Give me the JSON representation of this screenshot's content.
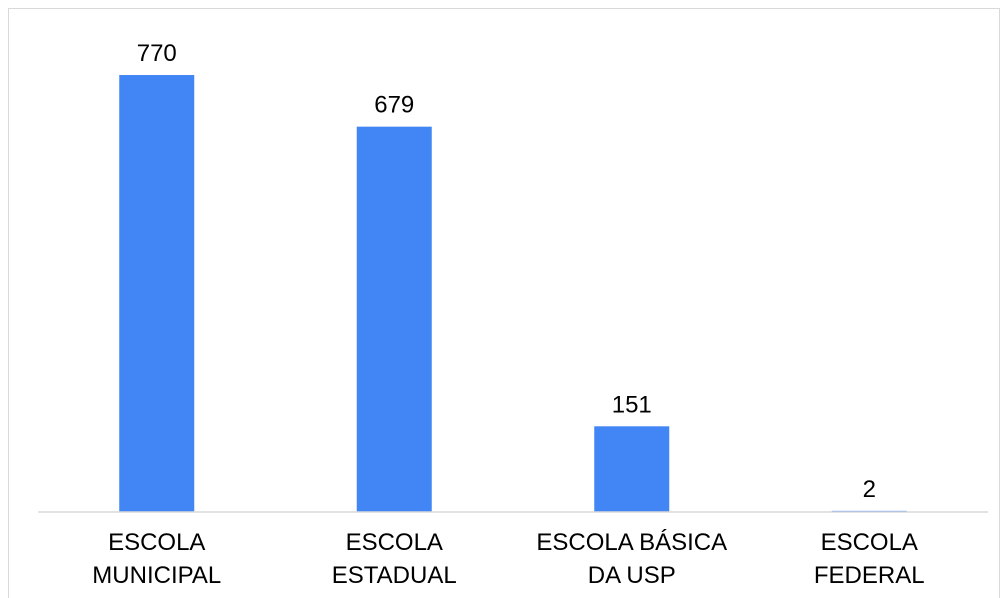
{
  "chart_data": {
    "type": "bar",
    "categories": [
      [
        "ESCOLA",
        "MUNICIPAL"
      ],
      [
        "ESCOLA",
        "ESTADUAL"
      ],
      [
        "ESCOLA BÁSICA",
        "DA USP"
      ],
      [
        "ESCOLA",
        "FEDERAL"
      ]
    ],
    "values": [
      770,
      679,
      151,
      2
    ],
    "data_labels": [
      "770",
      "679",
      "151",
      "2"
    ],
    "ylim": [
      0,
      800
    ],
    "grid": false,
    "legend": "none",
    "bar_color": "#4285f4",
    "axis_color": "#d9d9d9"
  }
}
